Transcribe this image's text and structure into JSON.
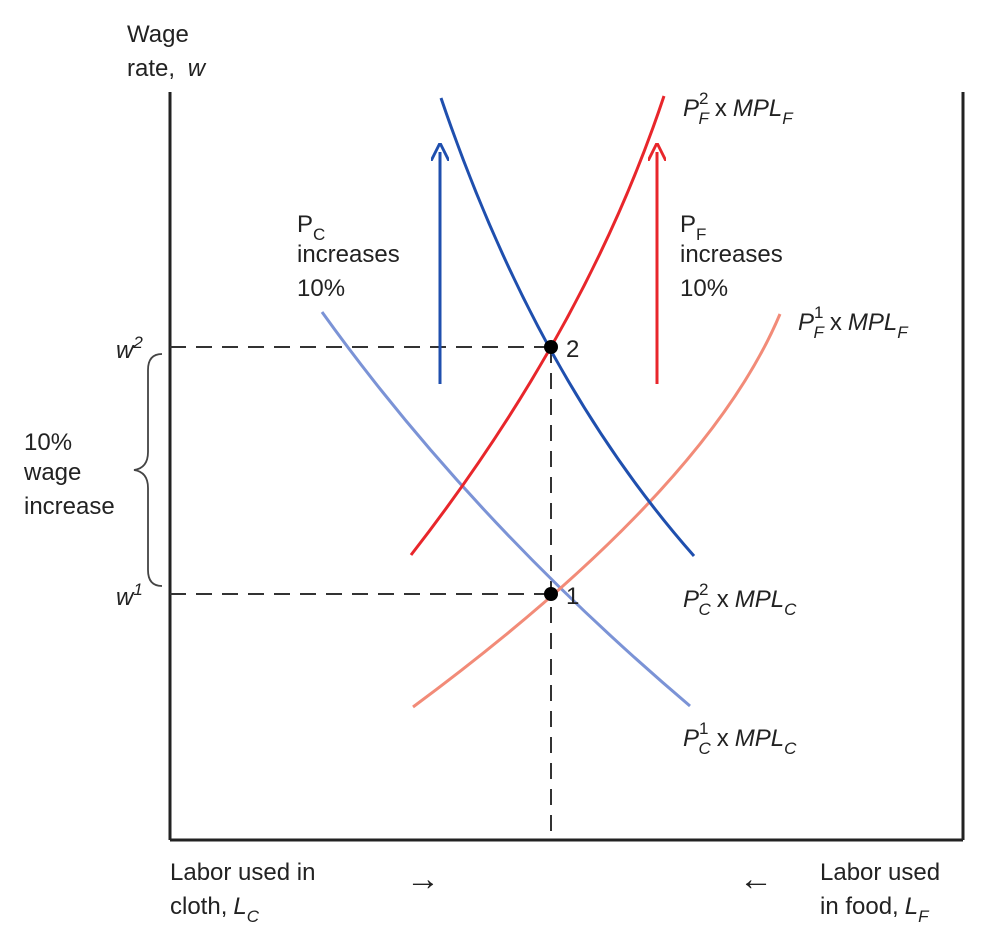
{
  "axis": {
    "y_label_line1": "Wage",
    "y_label_line2": "rate,",
    "y_label_var": "w",
    "x_left_line1": "Labor used in",
    "x_left_line2": "cloth,",
    "x_left_var": "L",
    "x_left_sub": "C",
    "x_left_arrow": "→",
    "x_right_line1": "Labor used",
    "x_right_line2": "in food,",
    "x_right_var": "L",
    "x_right_sub": "F",
    "x_right_arrow": "←"
  },
  "wages": {
    "w2_base": "w",
    "w2_sup": "2",
    "w1_base": "w",
    "w1_sup": "1"
  },
  "bracket_note": {
    "line1": "10%",
    "line2": "wage",
    "line3": "increase"
  },
  "points": {
    "p1": "1",
    "p2": "2"
  },
  "shift_notes": {
    "cloth": {
      "var": "P",
      "sub": "C",
      "line2": "increases",
      "line3": "10%"
    },
    "food": {
      "var": "P",
      "sub": "F",
      "line2": "increases",
      "line3": "10%"
    }
  },
  "curve_labels": {
    "pf2": {
      "base": "P",
      "sup": "2",
      "sub": "F",
      "rest": "x",
      "mpl": "MPL",
      "mpl_sub": "F"
    },
    "pf1": {
      "base": "P",
      "sup": "1",
      "sub": "F",
      "rest": "x",
      "mpl": "MPL",
      "mpl_sub": "F"
    },
    "pc2": {
      "base": "P",
      "sup": "2",
      "sub": "C",
      "rest": "x",
      "mpl": "MPL",
      "mpl_sub": "C"
    },
    "pc1": {
      "base": "P",
      "sup": "1",
      "sub": "C",
      "rest": "x",
      "mpl": "MPL",
      "mpl_sub": "C"
    }
  },
  "colors": {
    "cloth_new": "#1f4fae",
    "cloth_old": "#7b93d6",
    "food_new": "#e8262b",
    "food_old": "#f28b78",
    "axis": "#222222",
    "dash": "#333333"
  }
}
